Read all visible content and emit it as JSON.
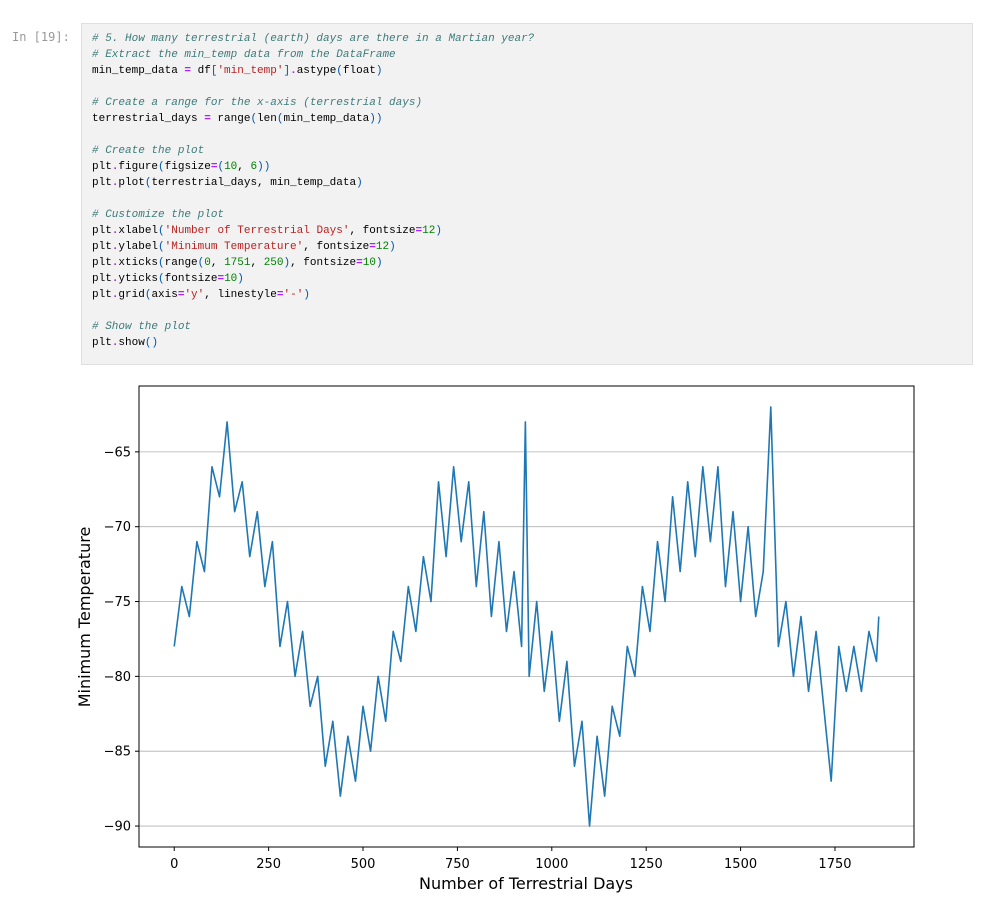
{
  "cell": {
    "prompt": "In [19]:",
    "code_blocks": [
      [
        "# 5. How many terrestrial (earth) days are there in a Martian year?",
        "# Extract the min_temp data from the DataFrame",
        "min_temp_data = df['min_temp'].astype(float)"
      ],
      [
        "# Create a range for the x-axis (terrestrial days)",
        "terrestrial_days = range(len(min_temp_data))"
      ],
      [
        "# Create the plot",
        "plt.figure(figsize=(10, 6))",
        "plt.plot(terrestrial_days, min_temp_data)"
      ],
      [
        "# Customize the plot",
        "plt.xlabel('Number of Terrestrial Days', fontsize=12)",
        "plt.ylabel('Minimum Temperature', fontsize=12)",
        "plt.xticks(range(0, 1751, 250), fontsize=10)",
        "plt.yticks(fontsize=10)",
        "plt.grid(axis='y', linestyle='-')"
      ],
      [
        "# Show the plot",
        "plt.show()"
      ]
    ]
  },
  "chart_data": {
    "type": "line",
    "xlabel": "Number of Terrestrial Days",
    "ylabel": "Minimum Temperature",
    "color": "#1f77b4",
    "grid": "y",
    "x": [
      0,
      20,
      40,
      60,
      80,
      100,
      120,
      140,
      160,
      180,
      200,
      220,
      240,
      260,
      280,
      300,
      320,
      340,
      360,
      380,
      400,
      420,
      440,
      460,
      480,
      500,
      520,
      540,
      560,
      580,
      600,
      620,
      640,
      660,
      680,
      700,
      720,
      740,
      760,
      780,
      800,
      820,
      840,
      860,
      880,
      900,
      920,
      930,
      940,
      960,
      980,
      1000,
      1020,
      1040,
      1060,
      1080,
      1100,
      1120,
      1140,
      1160,
      1180,
      1200,
      1220,
      1240,
      1260,
      1280,
      1300,
      1320,
      1340,
      1360,
      1380,
      1400,
      1420,
      1440,
      1460,
      1480,
      1500,
      1520,
      1540,
      1560,
      1580,
      1600,
      1620,
      1640,
      1660,
      1680,
      1700,
      1720,
      1740,
      1760,
      1780,
      1800,
      1820,
      1840,
      1860,
      1866
    ],
    "values": [
      -78,
      -74,
      -76,
      -71,
      -73,
      -66,
      -68,
      -63,
      -69,
      -67,
      -72,
      -69,
      -74,
      -71,
      -78,
      -75,
      -80,
      -77,
      -82,
      -80,
      -86,
      -83,
      -88,
      -84,
      -87,
      -82,
      -85,
      -80,
      -83,
      -77,
      -79,
      -74,
      -77,
      -72,
      -75,
      -67,
      -72,
      -66,
      -71,
      -67,
      -74,
      -69,
      -76,
      -71,
      -77,
      -73,
      -78,
      -63,
      -80,
      -75,
      -81,
      -77,
      -83,
      -79,
      -86,
      -83,
      -90,
      -84,
      -88,
      -82,
      -84,
      -78,
      -80,
      -74,
      -77,
      -71,
      -75,
      -68,
      -73,
      -67,
      -72,
      -66,
      -71,
      -66,
      -74,
      -69,
      -75,
      -70,
      -76,
      -73,
      -62,
      -78,
      -75,
      -80,
      -76,
      -81,
      -77,
      -82,
      -87,
      -78,
      -81,
      -78,
      -81,
      -77,
      -79,
      -76
    ],
    "xlim": [
      -93.3,
      1959.3
    ],
    "ylim": [
      -91.4,
      -60.6
    ],
    "xticks": [
      0,
      250,
      500,
      750,
      1000,
      1250,
      1500,
      1750
    ],
    "yticks": [
      {
        "value": -90,
        "label": "−90"
      },
      {
        "value": -85,
        "label": "−85"
      },
      {
        "value": -80,
        "label": "−80"
      },
      {
        "value": -75,
        "label": "−75"
      },
      {
        "value": -70,
        "label": "−70"
      },
      {
        "value": -65,
        "label": "−65"
      }
    ]
  }
}
